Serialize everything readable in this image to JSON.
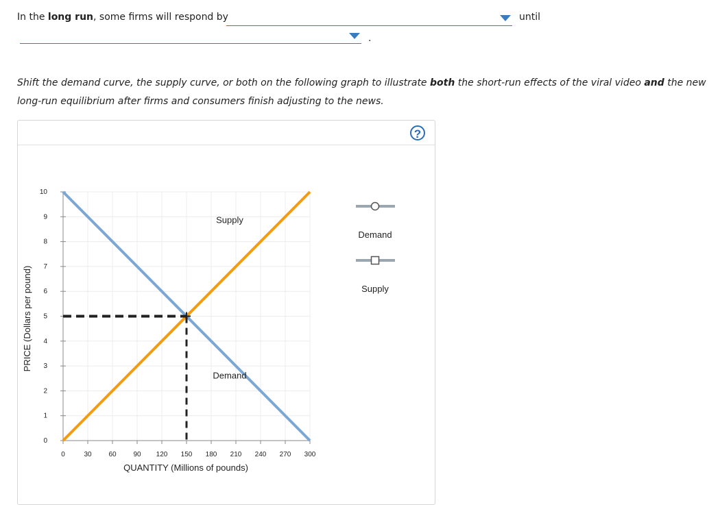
{
  "question": {
    "sentence_prefix": "In the ",
    "sentence_bold": "long run",
    "sentence_suffix": ", some firms will respond by",
    "dropdown1_value": "",
    "until_text": "until",
    "dropdown2_value": "",
    "period_text": "."
  },
  "instructions": {
    "part1": "Shift the demand curve, the supply curve, or both on the following graph to illustrate ",
    "bold1": "both",
    "part2": " the short-run effects of the viral video ",
    "bold2": "and",
    "part3": " the new long-run equilibrium after firms and consumers finish adjusting to the news."
  },
  "help_icon": "question-mark-icon",
  "help_text": "?",
  "palette": [
    {
      "label": "Demand",
      "marker": "circle",
      "color": "#9aa6b0"
    },
    {
      "label": "Supply",
      "marker": "square",
      "color": "#9aa6b0"
    }
  ],
  "chart_data": {
    "type": "line",
    "xlabel": "QUANTITY (Millions of pounds)",
    "ylabel": "PRICE (Dollars per pound)",
    "xlim": [
      0,
      300
    ],
    "ylim": [
      0,
      10
    ],
    "xticks": [
      0,
      30,
      60,
      90,
      120,
      150,
      180,
      210,
      240,
      270,
      300
    ],
    "yticks": [
      0,
      1,
      2,
      3,
      4,
      5,
      6,
      7,
      8,
      9,
      10
    ],
    "grid": true,
    "series": [
      {
        "name": "Demand",
        "color": "#7ba7d4",
        "points": [
          [
            0,
            10
          ],
          [
            300,
            0
          ]
        ],
        "label_at": [
          240,
          2.5
        ]
      },
      {
        "name": "Supply",
        "color": "#f39c12",
        "points": [
          [
            0,
            0
          ],
          [
            300,
            10
          ]
        ],
        "label_at": [
          240,
          8.75
        ]
      }
    ],
    "equilibrium": {
      "x": 150,
      "y": 5
    }
  }
}
